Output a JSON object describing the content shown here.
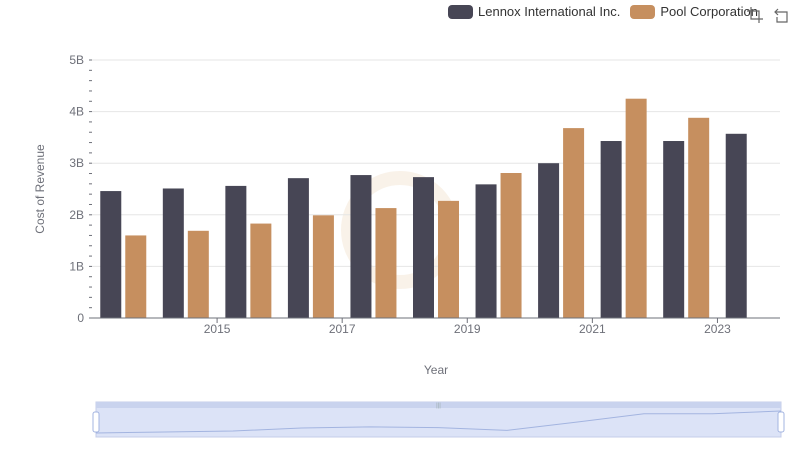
{
  "legend": {
    "items": [
      {
        "label": "Lennox International Inc.",
        "color": "#474655"
      },
      {
        "label": "Pool Corporation",
        "color": "#c68f5f"
      }
    ]
  },
  "toolbox": {
    "icons": [
      "zoom-icon",
      "restore-icon"
    ]
  },
  "chart_data": {
    "type": "bar",
    "x": [
      2014,
      2015,
      2016,
      2017,
      2018,
      2019,
      2020,
      2021,
      2022,
      2023,
      2024
    ],
    "x_tick_labels": [
      "2015",
      "2017",
      "2019",
      "2021",
      "2023"
    ],
    "y_tick_labels": [
      "0",
      "1B",
      "2B",
      "3B",
      "4B",
      "5B"
    ],
    "xlabel": "Year",
    "ylabel": "Cost of Revenue",
    "ylim": [
      0,
      5000000000
    ],
    "grid": true,
    "legend_position": "top-right",
    "series": [
      {
        "name": "Lennox International Inc.",
        "color": "#474655",
        "values": [
          2460000000,
          2510000000,
          2560000000,
          2710000000,
          2770000000,
          2730000000,
          2590000000,
          3000000000,
          3430000000,
          3430000000,
          3570000000
        ]
      },
      {
        "name": "Pool Corporation",
        "color": "#c68f5f",
        "values": [
          1600000000,
          1690000000,
          1830000000,
          1990000000,
          2130000000,
          2270000000,
          2810000000,
          3680000000,
          4250000000,
          3880000000,
          null
        ]
      }
    ]
  }
}
